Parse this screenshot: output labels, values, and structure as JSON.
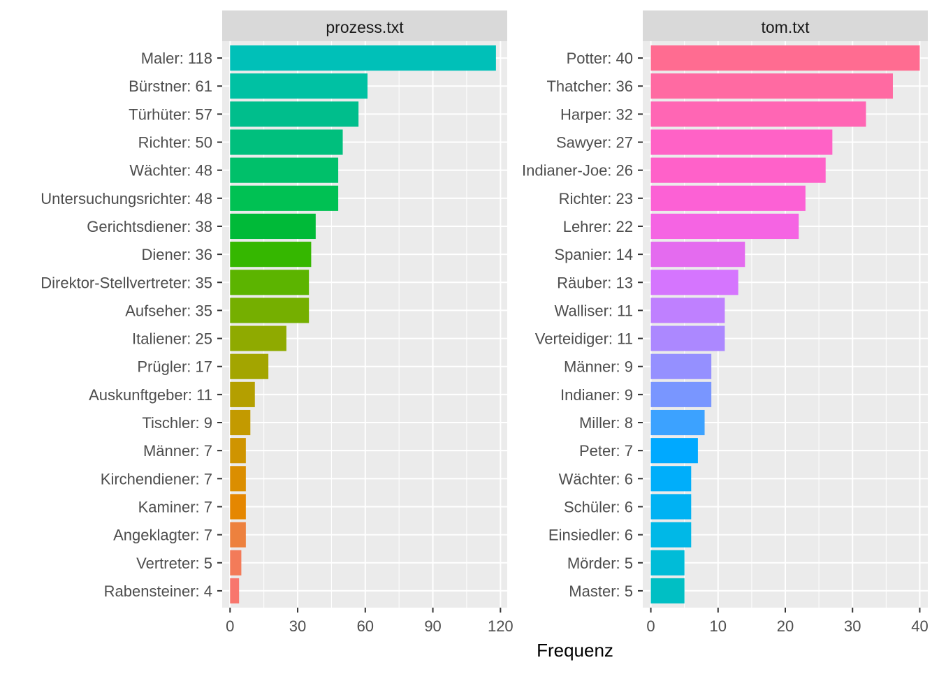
{
  "chart_data": {
    "type": "bar",
    "orientation": "horizontal",
    "xlabel": "Frequenz",
    "grid": true,
    "legend": "none",
    "panels": [
      {
        "strip_label": "prozess.txt",
        "xlim": [
          -3.5,
          123
        ],
        "ticks": [
          0,
          30,
          60,
          90,
          120
        ],
        "categories": [
          "Maler: 118",
          "Bürstner: 61",
          "Türhüter: 57",
          "Richter: 50",
          "Wächter: 48",
          "Untersuchungsrichter: 48",
          "Gerichtsdiener: 38",
          "Diener: 36",
          "Direktor-Stellvertreter: 35",
          "Aufseher: 35",
          "Italiener: 25",
          "Prügler: 17",
          "Auskunftgeber: 11",
          "Tischler: 9",
          "Männer: 7",
          "Kirchendiener: 7",
          "Kaminer: 7",
          "Angeklagter: 7",
          "Vertreter: 5",
          "Rabensteiner: 4"
        ],
        "values": [
          118,
          61,
          57,
          50,
          48,
          48,
          38,
          36,
          35,
          35,
          25,
          17,
          11,
          9,
          7,
          7,
          7,
          7,
          5,
          4
        ],
        "colors": [
          "#00C0B8",
          "#00C1A3",
          "#00BE8C",
          "#00BF7D",
          "#00C06A",
          "#00C153",
          "#00BA38",
          "#35B700",
          "#5CB400",
          "#75AF00",
          "#8FAA00",
          "#A3A500",
          "#B49F00",
          "#C39A00",
          "#CF9400",
          "#DB8E00",
          "#E58700",
          "#ED813E",
          "#F37B59",
          "#F8766D"
        ]
      },
      {
        "strip_label": "tom.txt",
        "xlim": [
          -1.2,
          41.2
        ],
        "ticks": [
          0,
          10,
          20,
          30,
          40
        ],
        "categories": [
          "Potter: 40",
          "Thatcher: 36",
          "Harper: 32",
          "Sawyer: 27",
          "Indianer-Joe: 26",
          "Richter: 23",
          "Lehrer: 22",
          "Spanier: 14",
          "Räuber: 13",
          "Walliser: 11",
          "Verteidiger: 11",
          "Männer: 9",
          "Indianer: 9",
          "Miller: 8",
          "Peter: 7",
          "Wächter: 6",
          "Schüler: 6",
          "Einsiedler: 6",
          "Mörder: 5",
          "Master: 5"
        ],
        "values": [
          40,
          36,
          32,
          27,
          26,
          23,
          22,
          14,
          13,
          11,
          11,
          9,
          9,
          8,
          7,
          6,
          6,
          6,
          5,
          5
        ],
        "colors": [
          "#FF6C91",
          "#FF6AA2",
          "#FF66B4",
          "#FF62C6",
          "#FF61C9",
          "#FC61D5",
          "#F564E3",
          "#E46BEF",
          "#D575FE",
          "#BF80FF",
          "#AC88FF",
          "#9590FF",
          "#7996FF",
          "#3CA2FF",
          "#00A9FF",
          "#00AEFA",
          "#00B2F3",
          "#00B8E7",
          "#00BCD8",
          "#00BFC4"
        ]
      }
    ]
  }
}
